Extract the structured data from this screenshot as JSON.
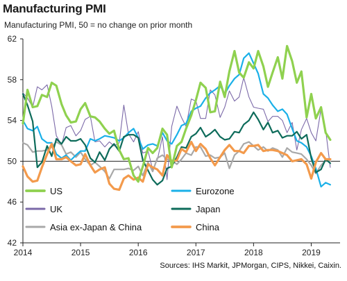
{
  "title": "Manufacturing PMI",
  "subtitle": "Manufacturing PMI, 50 = no change on prior month",
  "source": "Sources: IHS Markit, JPMorgan, CIPS, Nikkei, Caixin.",
  "chart_data": {
    "type": "line",
    "xlabel": "",
    "ylabel": "",
    "ylim": [
      42,
      62
    ],
    "yticks": [
      42,
      46,
      50,
      54,
      58,
      62
    ],
    "xlim": [
      2014.0,
      2019.5
    ],
    "xticks": [
      "2014",
      "2015",
      "2016",
      "2017",
      "2018",
      "2019"
    ],
    "grid": false,
    "legend_position": "bottom-inside",
    "series": [
      {
        "name": "US",
        "color": "#8fd14f",
        "width": 3.2,
        "x": [
          2014.0,
          2014.08,
          2014.17,
          2014.25,
          2014.33,
          2014.42,
          2014.5,
          2014.58,
          2014.67,
          2014.75,
          2014.83,
          2014.92,
          2015.0,
          2015.08,
          2015.17,
          2015.25,
          2015.33,
          2015.42,
          2015.5,
          2015.58,
          2015.67,
          2015.75,
          2015.83,
          2015.92,
          2016.0,
          2016.08,
          2016.17,
          2016.25,
          2016.33,
          2016.42,
          2016.5,
          2016.58,
          2016.67,
          2016.75,
          2016.83,
          2016.92,
          2017.0,
          2017.08,
          2017.17,
          2017.25,
          2017.33,
          2017.42,
          2017.5,
          2017.58,
          2017.67,
          2017.75,
          2017.83,
          2017.92,
          2018.0,
          2018.08,
          2018.17,
          2018.25,
          2018.33,
          2018.42,
          2018.5,
          2018.58,
          2018.67,
          2018.75,
          2018.83,
          2018.92,
          2019.0,
          2019.08,
          2019.17,
          2019.25,
          2019.33
        ],
        "values": [
          53.7,
          57.0,
          55.3,
          55.4,
          56.5,
          56.3,
          57.7,
          57.4,
          55.6,
          54.5,
          53.8,
          53.9,
          55.1,
          55.7,
          54.4,
          54.3,
          53.9,
          53.2,
          52.7,
          53.0,
          51.1,
          50.2,
          50.3,
          48.6,
          48.0,
          49.5,
          51.3,
          50.8,
          51.3,
          53.2,
          52.6,
          49.4,
          51.5,
          51.9,
          53.2,
          54.5,
          56.0,
          57.7,
          57.2,
          54.8,
          54.9,
          57.8,
          56.3,
          58.8,
          60.8,
          58.7,
          58.2,
          59.7,
          59.1,
          60.8,
          59.3,
          57.3,
          58.7,
          60.2,
          58.1,
          61.3,
          59.8,
          57.7,
          58.8,
          54.3,
          56.6,
          54.2,
          55.3,
          52.8,
          52.1
        ]
      },
      {
        "name": "Eurozone",
        "color": "#1ab0e8",
        "width": 2.2,
        "x": [
          2014.0,
          2014.08,
          2014.17,
          2014.25,
          2014.33,
          2014.42,
          2014.5,
          2014.58,
          2014.67,
          2014.75,
          2014.83,
          2014.92,
          2015.0,
          2015.08,
          2015.17,
          2015.25,
          2015.33,
          2015.42,
          2015.5,
          2015.58,
          2015.67,
          2015.75,
          2015.83,
          2015.92,
          2016.0,
          2016.08,
          2016.17,
          2016.25,
          2016.33,
          2016.42,
          2016.5,
          2016.58,
          2016.67,
          2016.75,
          2016.83,
          2016.92,
          2017.0,
          2017.08,
          2017.17,
          2017.25,
          2017.33,
          2017.42,
          2017.5,
          2017.58,
          2017.67,
          2017.75,
          2017.83,
          2017.92,
          2018.0,
          2018.08,
          2018.17,
          2018.25,
          2018.33,
          2018.42,
          2018.5,
          2018.58,
          2018.67,
          2018.75,
          2018.83,
          2018.92,
          2019.0,
          2019.08,
          2019.17,
          2019.25,
          2019.33
        ],
        "values": [
          54.0,
          53.2,
          53.0,
          53.4,
          52.2,
          51.8,
          51.8,
          50.7,
          50.3,
          50.6,
          50.1,
          50.6,
          51.0,
          51.0,
          52.2,
          52.0,
          52.2,
          52.5,
          52.4,
          52.3,
          52.0,
          52.3,
          52.8,
          53.2,
          52.3,
          51.2,
          51.6,
          51.7,
          51.5,
          52.8,
          52.0,
          51.7,
          52.6,
          53.5,
          53.7,
          54.9,
          55.2,
          55.4,
          56.2,
          56.7,
          57.0,
          57.4,
          56.6,
          57.4,
          58.1,
          58.5,
          60.1,
          60.6,
          59.6,
          58.6,
          56.6,
          56.2,
          55.5,
          54.9,
          55.1,
          54.6,
          53.2,
          52.0,
          51.8,
          51.4,
          50.5,
          49.3,
          47.5,
          47.9,
          47.7
        ]
      },
      {
        "name": "UK",
        "color": "#7b69a8",
        "width": 1.1,
        "x": [
          2014.0,
          2014.08,
          2014.17,
          2014.25,
          2014.33,
          2014.42,
          2014.5,
          2014.58,
          2014.67,
          2014.75,
          2014.83,
          2014.92,
          2015.0,
          2015.08,
          2015.17,
          2015.25,
          2015.33,
          2015.42,
          2015.5,
          2015.58,
          2015.67,
          2015.75,
          2015.83,
          2015.92,
          2016.0,
          2016.08,
          2016.17,
          2016.25,
          2016.33,
          2016.42,
          2016.5,
          2016.58,
          2016.67,
          2016.75,
          2016.83,
          2016.92,
          2017.0,
          2017.08,
          2017.17,
          2017.25,
          2017.33,
          2017.42,
          2017.5,
          2017.58,
          2017.67,
          2017.75,
          2017.83,
          2017.92,
          2018.0,
          2018.08,
          2018.17,
          2018.25,
          2018.33,
          2018.42,
          2018.5,
          2018.58,
          2018.67,
          2018.75,
          2018.83,
          2018.92,
          2019.0,
          2019.08,
          2019.17,
          2019.25,
          2019.33
        ],
        "values": [
          56.7,
          56.2,
          55.3,
          57.3,
          57.0,
          57.5,
          55.4,
          52.5,
          51.6,
          53.3,
          53.5,
          52.5,
          53.0,
          54.1,
          54.4,
          51.9,
          52.0,
          51.4,
          51.9,
          51.5,
          51.8,
          55.5,
          52.7,
          51.9,
          52.9,
          50.8,
          51.0,
          49.2,
          50.1,
          52.4,
          48.2,
          53.4,
          55.4,
          54.3,
          53.4,
          56.1,
          55.9,
          54.2,
          54.2,
          57.0,
          56.5,
          54.3,
          55.3,
          56.9,
          55.9,
          56.3,
          58.2,
          56.3,
          55.3,
          55.2,
          55.1,
          53.9,
          54.4,
          54.4,
          54.0,
          52.8,
          53.8,
          51.1,
          53.1,
          54.2,
          52.8,
          52.0,
          55.1,
          53.1,
          49.4
        ]
      },
      {
        "name": "Japan",
        "color": "#0d6b5a",
        "width": 2.2,
        "x": [
          2014.0,
          2014.08,
          2014.17,
          2014.25,
          2014.33,
          2014.42,
          2014.5,
          2014.58,
          2014.67,
          2014.75,
          2014.83,
          2014.92,
          2015.0,
          2015.08,
          2015.17,
          2015.25,
          2015.33,
          2015.42,
          2015.5,
          2015.58,
          2015.67,
          2015.75,
          2015.83,
          2015.92,
          2016.0,
          2016.08,
          2016.17,
          2016.25,
          2016.33,
          2016.42,
          2016.5,
          2016.58,
          2016.67,
          2016.75,
          2016.83,
          2016.92,
          2017.0,
          2017.08,
          2017.17,
          2017.25,
          2017.33,
          2017.42,
          2017.5,
          2017.58,
          2017.67,
          2017.75,
          2017.83,
          2017.92,
          2018.0,
          2018.08,
          2018.17,
          2018.25,
          2018.33,
          2018.42,
          2018.5,
          2018.58,
          2018.67,
          2018.75,
          2018.83,
          2018.92,
          2019.0,
          2019.08,
          2019.17,
          2019.25,
          2019.33
        ],
        "values": [
          56.6,
          55.5,
          53.9,
          49.4,
          49.9,
          51.5,
          50.5,
          52.2,
          51.7,
          52.4,
          52.0,
          52.0,
          52.2,
          51.6,
          50.3,
          49.9,
          50.9,
          50.1,
          51.2,
          51.7,
          51.0,
          52.4,
          52.6,
          52.6,
          52.3,
          50.1,
          49.1,
          48.2,
          47.7,
          48.1,
          49.3,
          49.5,
          50.4,
          51.4,
          51.3,
          52.4,
          52.7,
          53.3,
          52.4,
          52.7,
          53.1,
          52.4,
          52.1,
          52.2,
          52.9,
          52.8,
          53.6,
          54.0,
          54.8,
          54.1,
          53.1,
          53.8,
          52.8,
          53.0,
          52.3,
          52.5,
          52.5,
          52.9,
          52.2,
          52.6,
          50.3,
          48.9,
          49.2,
          50.2,
          49.8
        ]
      },
      {
        "name": "Asia ex-Japan & China",
        "color": "#a8a8a8",
        "width": 2.2,
        "x": [
          2014.0,
          2014.08,
          2014.17,
          2014.25,
          2014.33,
          2014.42,
          2014.5,
          2014.58,
          2014.67,
          2014.75,
          2014.83,
          2014.92,
          2015.0,
          2015.08,
          2015.17,
          2015.25,
          2015.33,
          2015.42,
          2015.5,
          2015.58,
          2015.67,
          2015.75,
          2015.83,
          2015.92,
          2016.0,
          2016.08,
          2016.17,
          2016.25,
          2016.33,
          2016.42,
          2016.5,
          2016.58,
          2016.67,
          2016.75,
          2016.83,
          2016.92,
          2017.0,
          2017.08,
          2017.17,
          2017.25,
          2017.33,
          2017.42,
          2017.5,
          2017.58,
          2017.67,
          2017.75,
          2017.83,
          2017.92,
          2018.0,
          2018.08,
          2018.17,
          2018.25,
          2018.33,
          2018.42,
          2018.5,
          2018.58,
          2018.67,
          2018.75,
          2018.83,
          2018.92,
          2019.0,
          2019.08,
          2019.17,
          2019.25,
          2019.33
        ],
        "values": [
          51.8,
          51.6,
          50.9,
          51.0,
          51.0,
          51.1,
          51.4,
          51.9,
          51.6,
          50.7,
          50.9,
          50.4,
          50.9,
          50.2,
          49.6,
          49.9,
          49.5,
          49.0,
          48.3,
          49.2,
          49.2,
          49.2,
          49.3,
          49.1,
          49.5,
          48.6,
          49.9,
          49.0,
          50.3,
          50.6,
          50.2,
          50.1,
          49.7,
          50.2,
          50.8,
          50.6,
          51.4,
          51.4,
          50.5,
          50.6,
          50.3,
          50.4,
          50.8,
          49.3,
          50.6,
          51.0,
          51.7,
          51.9,
          51.5,
          51.1,
          51.4,
          51.0,
          51.3,
          51.1,
          50.4,
          51.3,
          50.9,
          50.8,
          50.7,
          50.2,
          49.6,
          48.8,
          49.6,
          50.1,
          50.0
        ]
      },
      {
        "name": "China",
        "color": "#f39a4c",
        "width": 3.2,
        "x": [
          2014.0,
          2014.08,
          2014.17,
          2014.25,
          2014.33,
          2014.42,
          2014.5,
          2014.58,
          2014.67,
          2014.75,
          2014.83,
          2014.92,
          2015.0,
          2015.08,
          2015.17,
          2015.25,
          2015.33,
          2015.42,
          2015.5,
          2015.58,
          2015.67,
          2015.75,
          2015.83,
          2015.92,
          2016.0,
          2016.08,
          2016.17,
          2016.25,
          2016.33,
          2016.42,
          2016.5,
          2016.58,
          2016.67,
          2016.75,
          2016.83,
          2016.92,
          2017.0,
          2017.08,
          2017.17,
          2017.25,
          2017.33,
          2017.42,
          2017.5,
          2017.58,
          2017.67,
          2017.75,
          2017.83,
          2017.92,
          2018.0,
          2018.08,
          2018.17,
          2018.25,
          2018.33,
          2018.42,
          2018.5,
          2018.58,
          2018.67,
          2018.75,
          2018.83,
          2018.92,
          2019.0,
          2019.08,
          2019.17,
          2019.25,
          2019.33
        ],
        "values": [
          49.5,
          48.5,
          48.0,
          48.1,
          49.4,
          50.7,
          51.7,
          50.2,
          50.2,
          50.4,
          50.0,
          49.6,
          49.7,
          50.7,
          49.6,
          48.9,
          49.2,
          49.4,
          47.8,
          47.3,
          47.2,
          48.3,
          48.6,
          48.2,
          48.4,
          48.0,
          49.7,
          49.4,
          49.2,
          48.6,
          50.6,
          50.0,
          50.1,
          51.2,
          50.9,
          51.9,
          51.0,
          51.7,
          51.2,
          50.3,
          49.6,
          50.4,
          51.1,
          51.6,
          51.0,
          51.0,
          50.8,
          51.5,
          51.5,
          51.6,
          51.0,
          51.1,
          51.1,
          51.0,
          50.8,
          50.6,
          50.0,
          50.1,
          50.2,
          49.7,
          48.3,
          49.9,
          50.8,
          50.2,
          50.2
        ]
      }
    ]
  }
}
